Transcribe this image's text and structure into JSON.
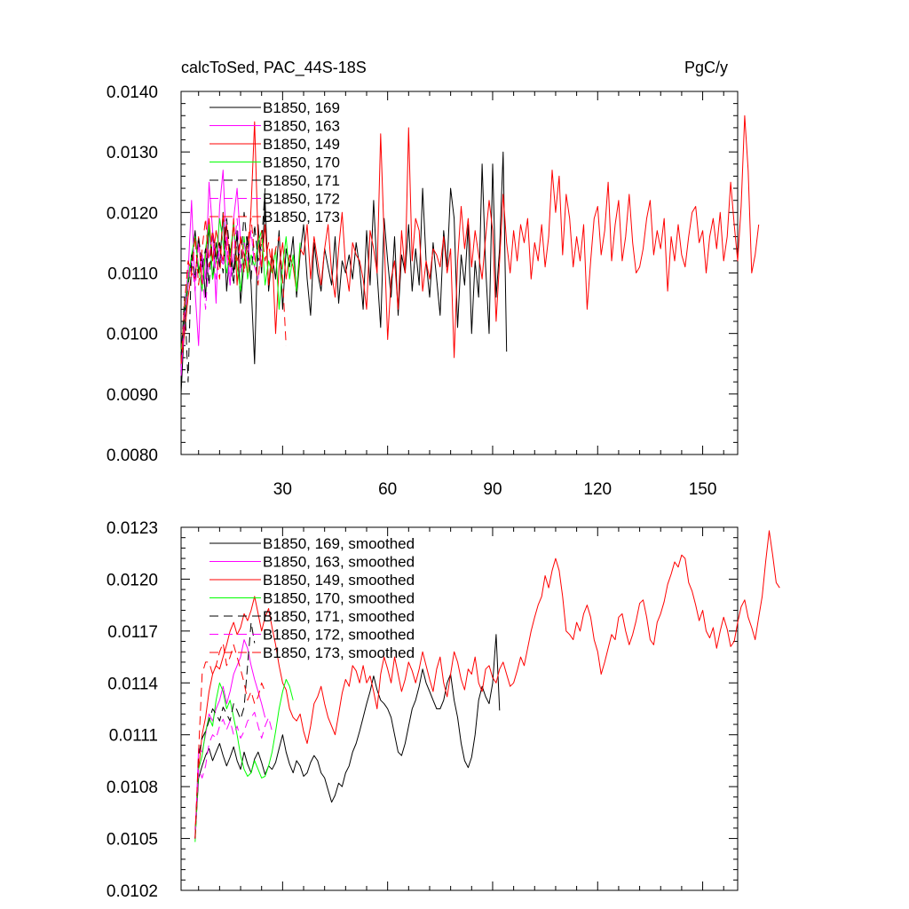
{
  "chart_data": [
    {
      "type": "line",
      "title": "calcToSed, PAC_44S-18S",
      "units": "PgC/y",
      "xlim": [
        1,
        160
      ],
      "ylim": [
        0.008,
        0.014
      ],
      "xticks": [
        30,
        60,
        90,
        120,
        150
      ],
      "xtick_labels": [
        "30",
        "60",
        "90",
        "120",
        "150"
      ],
      "yticks": [
        0.008,
        0.009,
        0.01,
        0.011,
        0.012,
        0.013,
        0.014
      ],
      "ytick_labels": [
        "0.0080",
        "0.0090",
        "0.0100",
        "0.0110",
        "0.0120",
        "0.0130",
        "0.0140"
      ],
      "series": [
        {
          "name": "B1850, 169",
          "color": "#000000",
          "dash": "solid",
          "x_start": 1,
          "values": [
            0.009,
            0.0102,
            0.0108,
            0.0112,
            0.0117,
            0.011,
            0.0113,
            0.0106,
            0.0118,
            0.0109,
            0.0115,
            0.0111,
            0.012,
            0.0107,
            0.0114,
            0.011,
            0.0117,
            0.0105,
            0.0112,
            0.0116,
            0.0108,
            0.0095,
            0.0118,
            0.011,
            0.0122,
            0.0107,
            0.0113,
            0.0109,
            0.0117,
            0.0104,
            0.0114,
            0.0111,
            0.0116,
            0.0106,
            0.0113,
            0.0118,
            0.0109,
            0.0103,
            0.0115,
            0.011,
            0.0107,
            0.0114,
            0.0111,
            0.0108,
            0.0116,
            0.0105,
            0.0112,
            0.011,
            0.0113,
            0.0109,
            0.0115,
            0.0111,
            0.0104,
            0.0117,
            0.0108,
            0.0122,
            0.011,
            0.0101,
            0.0119,
            0.0112,
            0.0106,
            0.0116,
            0.0103,
            0.0113,
            0.011,
            0.0118,
            0.0107,
            0.0114,
            0.0108,
            0.0124,
            0.0112,
            0.0106,
            0.0115,
            0.0109,
            0.0103,
            0.0117,
            0.0111,
            0.0124,
            0.0119,
            0.0101,
            0.0113,
            0.0108,
            0.0118,
            0.01,
            0.0112,
            0.0106,
            0.0128,
            0.0111,
            0.01,
            0.0128,
            0.0106,
            0.0114,
            0.013,
            0.0097
          ]
        },
        {
          "name": "B1850, 163",
          "color": "#ff00ff",
          "dash": "solid",
          "x_start": 1,
          "values": [
            0.0094,
            0.0105,
            0.011,
            0.0122,
            0.0107,
            0.0098,
            0.0113,
            0.0109,
            0.0125,
            0.0117,
            0.0105,
            0.0121,
            0.0127,
            0.0113,
            0.0108,
            0.0119,
            0.0124,
            0.0115
          ]
        },
        {
          "name": "B1850, 149",
          "color": "#ff0000",
          "dash": "solid",
          "x_start": 1,
          "values": [
            0.0095,
            0.01,
            0.0106,
            0.011,
            0.0109,
            0.0116,
            0.0108,
            0.0113,
            0.0119,
            0.0112,
            0.0117,
            0.0114,
            0.0112,
            0.0118,
            0.0111,
            0.0119,
            0.0108,
            0.0116,
            0.0113,
            0.011,
            0.0121,
            0.0135,
            0.0115,
            0.0111,
            0.0118,
            0.0108,
            0.0114,
            0.01,
            0.0111,
            0.0115,
            0.0109,
            0.0113,
            0.0111,
            0.0107,
            0.0114,
            0.0113,
            0.0118,
            0.0109,
            0.0116,
            0.0112,
            0.0108,
            0.0114,
            0.0118,
            0.011,
            0.0106,
            0.0114,
            0.012,
            0.0111,
            0.0107,
            0.0115,
            0.0113,
            0.0112,
            0.0109,
            0.0104,
            0.0117,
            0.0114,
            0.011,
            0.0133,
            0.0116,
            0.0099,
            0.0109,
            0.0112,
            0.0104,
            0.0117,
            0.011,
            0.0134,
            0.0112,
            0.0119,
            0.0117,
            0.0107,
            0.0112,
            0.0109,
            0.0114,
            0.0113,
            0.0111,
            0.0116,
            0.011,
            0.0114,
            0.0096,
            0.0112,
            0.0121,
            0.0114,
            0.0119,
            0.0111,
            0.0117,
            0.0113,
            0.0109,
            0.0116,
            0.0122,
            0.0117,
            0.0102,
            0.0112,
            0.0123,
            0.0115,
            0.011,
            0.0117,
            0.0112,
            0.0118,
            0.0115,
            0.0119,
            0.0109,
            0.0115,
            0.0112,
            0.0118,
            0.0111,
            0.0116,
            0.0127,
            0.012,
            0.0126,
            0.0113,
            0.0123,
            0.0119,
            0.0111,
            0.0116,
            0.0112,
            0.0118,
            0.0104,
            0.0112,
            0.0119,
            0.0121,
            0.0113,
            0.0117,
            0.0125,
            0.0112,
            0.0118,
            0.0122,
            0.0112,
            0.0116,
            0.0123,
            0.0115,
            0.011,
            0.0111,
            0.0114,
            0.0119,
            0.0122,
            0.0113,
            0.0117,
            0.0114,
            0.0119,
            0.0107,
            0.0116,
            0.0112,
            0.0118,
            0.0113,
            0.0111,
            0.0116,
            0.012,
            0.0121,
            0.0115,
            0.0117,
            0.011,
            0.0116,
            0.0119,
            0.0114,
            0.012,
            0.0112,
            0.0116,
            0.0125,
            0.0118,
            0.0112,
            0.0121,
            0.0136,
            0.0127,
            0.011,
            0.0113,
            0.0118
          ]
        },
        {
          "name": "B1850, 170",
          "color": "#00ff00",
          "dash": "solid",
          "x_start": 1,
          "values": [
            0.0097,
            0.0104,
            0.0109,
            0.0113,
            0.0116,
            0.0111,
            0.0107,
            0.0114,
            0.0118,
            0.0109,
            0.0112,
            0.0119,
            0.0115,
            0.011,
            0.0113,
            0.0118,
            0.0111,
            0.0107,
            0.0116,
            0.0109,
            0.0113,
            0.0111,
            0.0115,
            0.0117,
            0.0108,
            0.0112,
            0.011,
            0.0114,
            0.0104,
            0.0111,
            0.0116,
            0.0109,
            0.0113,
            0.0107,
            0.0115
          ]
        },
        {
          "name": "B1850, 171",
          "color": "#000000",
          "dash": "dashed",
          "x_start": 1,
          "values": [
            0.0096,
            0.0106,
            0.0092,
            0.0113,
            0.0109,
            0.0116,
            0.0111,
            0.0114,
            0.0108,
            0.0117,
            0.0112,
            0.0115,
            0.011,
            0.0119,
            0.0113,
            0.0108,
            0.0116,
            0.0111,
            0.012,
            0.0114,
            0.0109,
            0.0118,
            0.0112,
            0.0115,
            0.0124
          ]
        },
        {
          "name": "B1850, 172",
          "color": "#ff00ff",
          "dash": "dashed",
          "x_start": 1,
          "values": [
            0.0093,
            0.0103,
            0.0108,
            0.0112,
            0.0107,
            0.0115,
            0.011,
            0.0104,
            0.0113,
            0.0117,
            0.0109,
            0.0114,
            0.0111,
            0.0116,
            0.0108,
            0.0113,
            0.0119,
            0.011,
            0.0115,
            0.0112,
            0.0117,
            0.0111,
            0.0109,
            0.0114
          ]
        },
        {
          "name": "B1850, 173",
          "color": "#ff0000",
          "dash": "dashed",
          "x_start": 1,
          "values": [
            0.0095,
            0.0105,
            0.0112,
            0.011,
            0.0116,
            0.0108,
            0.0114,
            0.0119,
            0.0111,
            0.0117,
            0.0113,
            0.0109,
            0.012,
            0.0114,
            0.0111,
            0.0118,
            0.0112,
            0.0116,
            0.011,
            0.0115,
            0.0119,
            0.0113,
            0.0108,
            0.0117,
            0.0112,
            0.0115,
            0.011,
            0.0114,
            0.0116,
            0.0109,
            0.0098
          ]
        }
      ]
    },
    {
      "type": "line",
      "title": "",
      "xlim": [
        1,
        160
      ],
      "ylim": [
        0.0102,
        0.0123
      ],
      "xticks": [
        30,
        60,
        90,
        120,
        150
      ],
      "yticks": [
        0.0102,
        0.0105,
        0.0108,
        0.0111,
        0.0114,
        0.0117,
        0.012,
        0.0123
      ],
      "ytick_labels": [
        "0.0102",
        "0.0105",
        "0.0108",
        "0.0111",
        "0.0114",
        "0.0117",
        "0.0120",
        "0.0123"
      ],
      "series": [
        {
          "name": "B1850, 169, smoothed",
          "color": "#000000",
          "dash": "solid",
          "x_start": 5,
          "values": [
            0.0105,
            0.01085,
            0.01092,
            0.01098,
            0.01102,
            0.01095,
            0.011,
            0.01105,
            0.01098,
            0.01092,
            0.01097,
            0.01103,
            0.01095,
            0.0109,
            0.011,
            0.01093,
            0.01088,
            0.01096,
            0.011,
            0.01094,
            0.01087,
            0.01092,
            0.0109,
            0.01094,
            0.01102,
            0.0111,
            0.011,
            0.01093,
            0.01088,
            0.01095,
            0.01092,
            0.01086,
            0.01088,
            0.01094,
            0.01098,
            0.01095,
            0.01088,
            0.01085,
            0.01078,
            0.01071,
            0.01075,
            0.01082,
            0.0108,
            0.01088,
            0.01092,
            0.011,
            0.01105,
            0.01112,
            0.0112,
            0.01128,
            0.01135,
            0.01144,
            0.01136,
            0.0113,
            0.01128,
            0.01125,
            0.0112,
            0.0111,
            0.011,
            0.01098,
            0.01105,
            0.01115,
            0.01125,
            0.0113,
            0.01138,
            0.01148,
            0.0114,
            0.01135,
            0.0113,
            0.01125,
            0.01125,
            0.0113,
            0.0114,
            0.01145,
            0.0113,
            0.0112,
            0.01105,
            0.01095,
            0.01091,
            0.01097,
            0.0111,
            0.0113,
            0.01138,
            0.01132,
            0.01128,
            0.0114,
            0.01168,
            0.01124
          ]
        },
        {
          "name": "B1850, 163, smoothed",
          "color": "#ff00ff",
          "dash": "solid",
          "x_start": 5,
          "values": [
            0.0105,
            0.01102,
            0.011,
            0.0111,
            0.01122,
            0.01118,
            0.01125,
            0.0113,
            0.01138,
            0.01128,
            0.01135,
            0.01145,
            0.0115,
            0.01155,
            0.01165,
            0.0116,
            0.0115,
            0.01142,
            0.01135,
            0.01128,
            0.0112
          ]
        },
        {
          "name": "B1850, 149, smoothed",
          "color": "#ff0000",
          "dash": "solid",
          "x_start": 5,
          "values": [
            0.01055,
            0.0109,
            0.0111,
            0.0112,
            0.01135,
            0.01145,
            0.0115,
            0.01148,
            0.01155,
            0.01162,
            0.0117,
            0.01175,
            0.01168,
            0.01172,
            0.0118,
            0.01176,
            0.01182,
            0.0119,
            0.0118,
            0.0117,
            0.01178,
            0.01183,
            0.01172,
            0.01162,
            0.0115,
            0.0114,
            0.01136,
            0.01125,
            0.0112,
            0.01118,
            0.01122,
            0.01112,
            0.01105,
            0.01115,
            0.01128,
            0.01132,
            0.01138,
            0.01128,
            0.0112,
            0.01115,
            0.0111,
            0.01122,
            0.01134,
            0.01142,
            0.01138,
            0.0115,
            0.01147,
            0.0114,
            0.0115,
            0.0114,
            0.01144,
            0.01135,
            0.01125,
            0.01145,
            0.01155,
            0.01148,
            0.0114,
            0.01155,
            0.01145,
            0.01135,
            0.01142,
            0.01152,
            0.01147,
            0.0114,
            0.01148,
            0.01158,
            0.0115,
            0.01142,
            0.01135,
            0.01148,
            0.01155,
            0.0114,
            0.01132,
            0.01145,
            0.01158,
            0.01152,
            0.01142,
            0.01136,
            0.01148,
            0.01145,
            0.01155,
            0.0114,
            0.01135,
            0.01148,
            0.0115,
            0.01143,
            0.0114,
            0.01148,
            0.01152,
            0.01145,
            0.01138,
            0.0114,
            0.01147,
            0.01155,
            0.0115,
            0.0116,
            0.0117,
            0.01178,
            0.01185,
            0.0119,
            0.01202,
            0.01195,
            0.01205,
            0.01212,
            0.01205,
            0.0119,
            0.0117,
            0.01168,
            0.01165,
            0.01175,
            0.0117,
            0.0118,
            0.01185,
            0.01178,
            0.01165,
            0.01158,
            0.01145,
            0.01152,
            0.0116,
            0.01168,
            0.01165,
            0.01178,
            0.0118,
            0.0117,
            0.01162,
            0.01168,
            0.01176,
            0.01186,
            0.01188,
            0.01178,
            0.01165,
            0.01162,
            0.01175,
            0.0118,
            0.01187,
            0.01197,
            0.01203,
            0.0121,
            0.01207,
            0.01214,
            0.01212,
            0.01198,
            0.01193,
            0.01185,
            0.01176,
            0.01182,
            0.0117,
            0.01166,
            0.01172,
            0.0116,
            0.0117,
            0.01178,
            0.01171,
            0.01161,
            0.01164,
            0.01175,
            0.01184,
            0.01188,
            0.01178,
            0.01172,
            0.01165,
            0.01178,
            0.0119,
            0.0121,
            0.01228,
            0.01214,
            0.01198,
            0.01195
          ]
        },
        {
          "name": "B1850, 170, smoothed",
          "color": "#00ff00",
          "dash": "solid",
          "x_start": 5,
          "values": [
            0.01048,
            0.0109,
            0.01098,
            0.01112,
            0.0112,
            0.01115,
            0.0113,
            0.0114,
            0.01135,
            0.01125,
            0.0113,
            0.0112,
            0.0111,
            0.01098,
            0.0109,
            0.01086,
            0.01088,
            0.01095,
            0.0109,
            0.01085,
            0.01086,
            0.01092,
            0.011,
            0.01112,
            0.01125,
            0.01135,
            0.01142,
            0.01138,
            0.0113
          ]
        },
        {
          "name": "B1850, 171, smoothed",
          "color": "#000000",
          "dash": "dashed",
          "x_start": 5,
          "values": [
            0.0105,
            0.01098,
            0.01108,
            0.01112,
            0.01118,
            0.01125,
            0.01122,
            0.01118,
            0.01126,
            0.01122,
            0.01118,
            0.01128,
            0.01124,
            0.01119,
            0.01126,
            0.0115,
            0.01175,
            0.01163
          ]
        },
        {
          "name": "B1850, 172, smoothed",
          "color": "#ff00ff",
          "dash": "dashed",
          "x_start": 5,
          "values": [
            0.01052,
            0.0109,
            0.01085,
            0.01092,
            0.01105,
            0.0111,
            0.01108,
            0.01115,
            0.01119,
            0.01113,
            0.01118,
            0.0111,
            0.01115,
            0.01108,
            0.01112,
            0.01118,
            0.0112,
            0.01123,
            0.01115,
            0.01108,
            0.01115,
            0.0112,
            0.01112
          ]
        },
        {
          "name": "B1850, 173, smoothed",
          "color": "#ff0000",
          "dash": "dashed",
          "x_start": 5,
          "values": [
            0.0105,
            0.011,
            0.01145,
            0.01152,
            0.01152,
            0.01145,
            0.0115,
            0.01158,
            0.01163,
            0.0115,
            0.01155,
            0.01162,
            0.01155,
            0.01148,
            0.0114,
            0.0113,
            0.01135,
            0.01128,
            0.01132,
            0.0114,
            0.01135
          ]
        }
      ]
    }
  ]
}
